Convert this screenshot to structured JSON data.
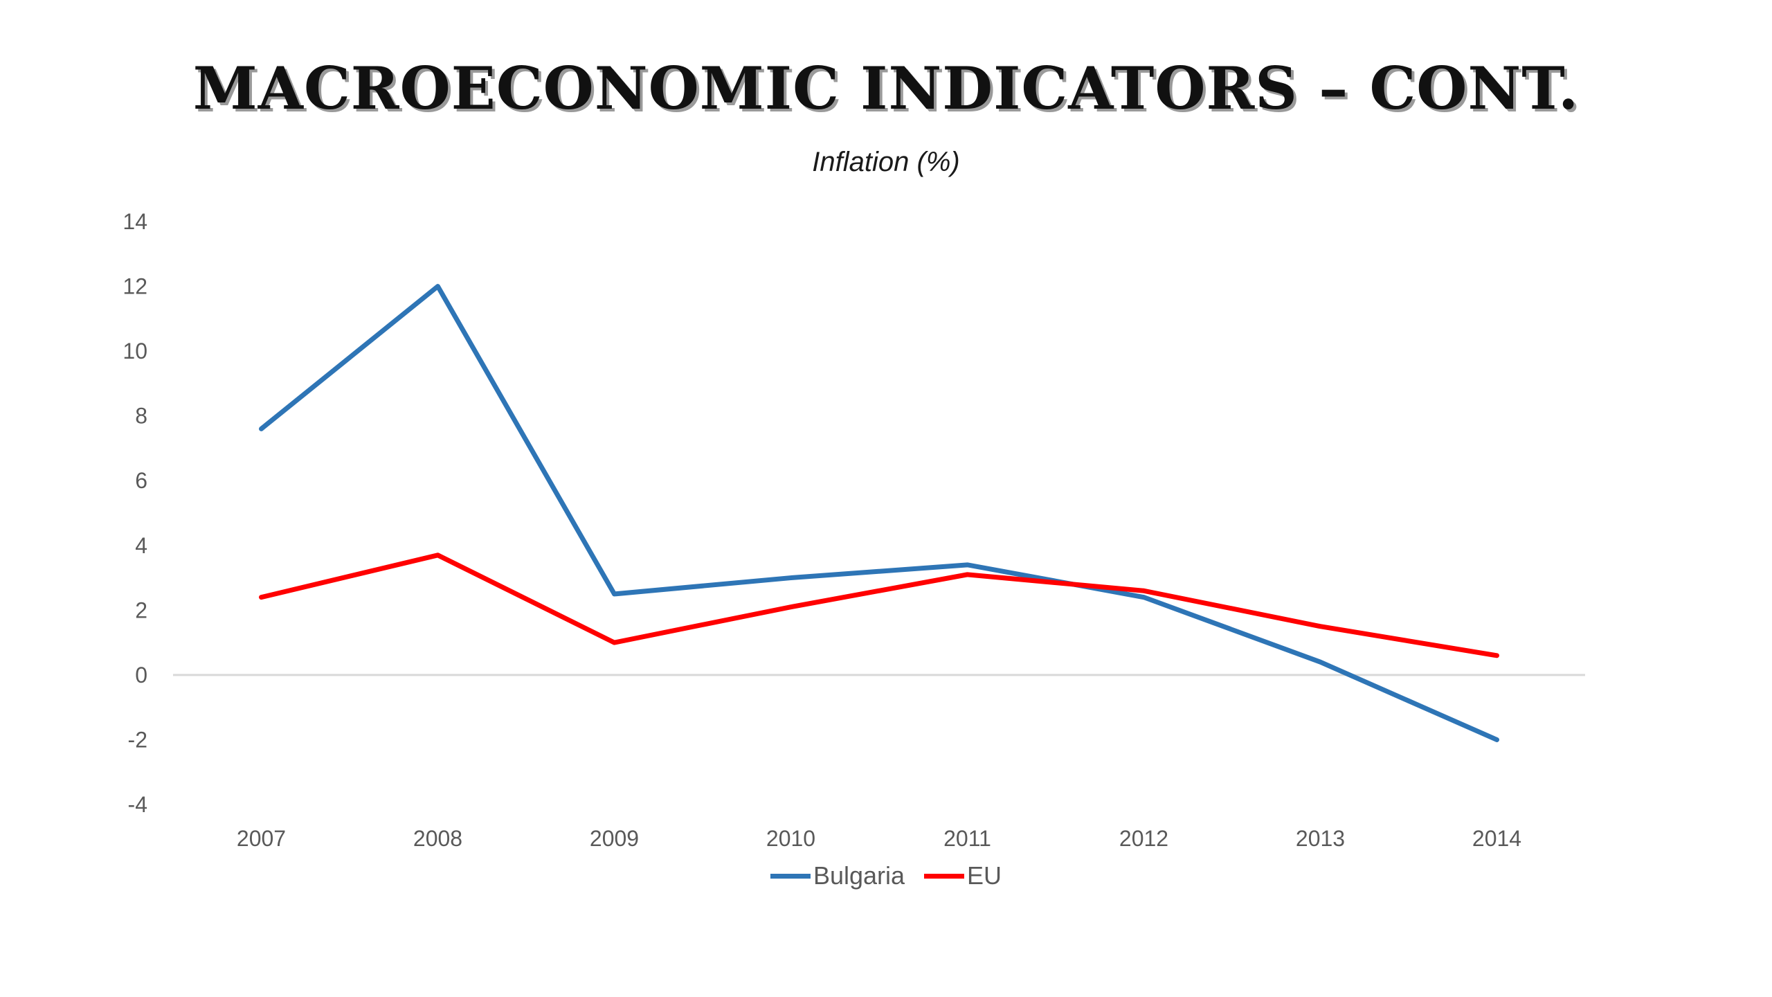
{
  "slide": {
    "title": "Macroeconomic Indicators – cont."
  },
  "chart_data": {
    "type": "line",
    "title": "Inflation (%)",
    "xlabel": "",
    "ylabel": "",
    "categories": [
      "2007",
      "2008",
      "2009",
      "2010",
      "2011",
      "2012",
      "2013",
      "2014"
    ],
    "series": [
      {
        "name": "Bulgaria",
        "color": "#2e75b6",
        "values": [
          7.6,
          12.0,
          2.5,
          3.0,
          3.4,
          2.4,
          0.4,
          -2.0
        ]
      },
      {
        "name": "EU",
        "color": "#ff0000",
        "values": [
          2.4,
          3.7,
          1.0,
          2.1,
          3.1,
          2.6,
          1.5,
          0.6
        ]
      }
    ],
    "ylim": [
      -4,
      14
    ],
    "yticks": [
      -4,
      -2,
      0,
      2,
      4,
      6,
      8,
      10,
      12,
      14
    ],
    "grid": false,
    "legend_position": "bottom"
  }
}
